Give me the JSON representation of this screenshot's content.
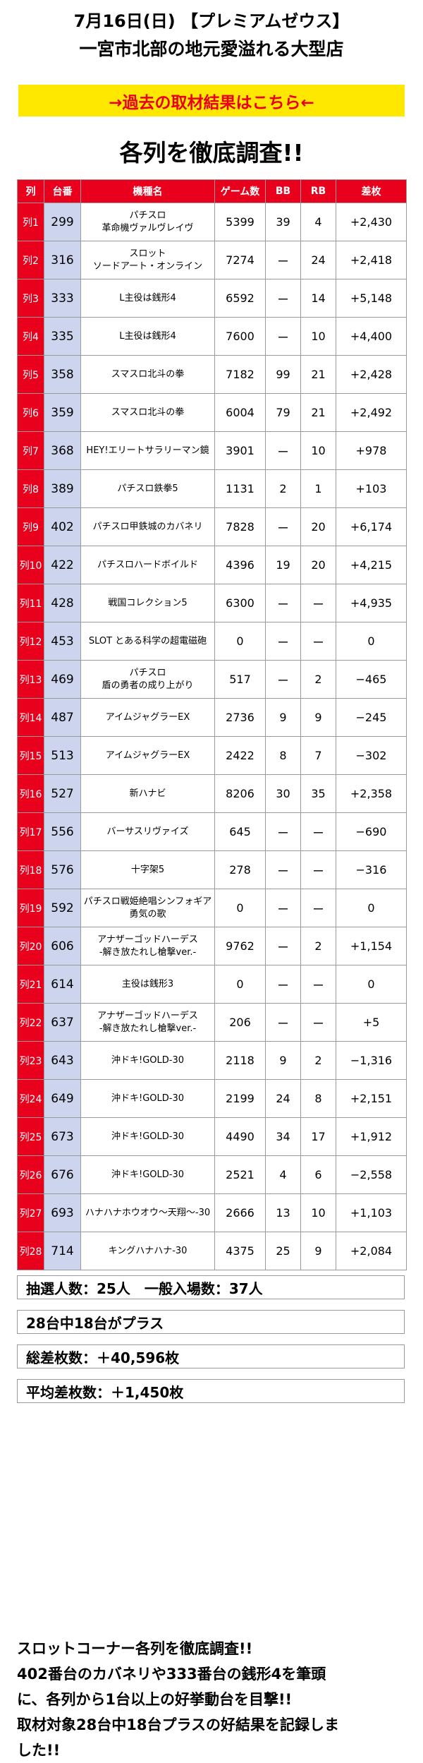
{
  "header": {
    "line1": "7月16日(日) 【プレミアムゼウス】",
    "line2": "一宮市北部の地元愛溢れる大型店"
  },
  "link_banner": "→過去の取材結果はこちら←",
  "section_title": "各列を徹底調査!!",
  "table": {
    "headers": [
      "列",
      "台番",
      "機種名",
      "ゲーム数",
      "BB",
      "RB",
      "差枚"
    ],
    "rows": [
      {
        "col": "列1",
        "no": "299",
        "name": "パチスロ\n革命機ヴァルヴレイヴ",
        "games": "5399",
        "bb": "39",
        "rb": "4",
        "diff": "+2,430"
      },
      {
        "col": "列2",
        "no": "316",
        "name": "スロット\nソードアート・オンライン",
        "games": "7274",
        "bb": "ー",
        "rb": "24",
        "diff": "+2,418"
      },
      {
        "col": "列3",
        "no": "333",
        "name": "L主役は銭形4",
        "games": "6592",
        "bb": "ー",
        "rb": "14",
        "diff": "+5,148"
      },
      {
        "col": "列4",
        "no": "335",
        "name": "L主役は銭形4",
        "games": "7600",
        "bb": "ー",
        "rb": "10",
        "diff": "+4,400"
      },
      {
        "col": "列5",
        "no": "358",
        "name": "スマスロ北斗の拳",
        "games": "7182",
        "bb": "99",
        "rb": "21",
        "diff": "+2,428"
      },
      {
        "col": "列6",
        "no": "359",
        "name": "スマスロ北斗の拳",
        "games": "6004",
        "bb": "79",
        "rb": "21",
        "diff": "+2,492"
      },
      {
        "col": "列7",
        "no": "368",
        "name": "HEY!エリートサラリーマン鏡",
        "games": "3901",
        "bb": "ー",
        "rb": "10",
        "diff": "+978"
      },
      {
        "col": "列8",
        "no": "389",
        "name": "パチスロ鉄拳5",
        "games": "1131",
        "bb": "2",
        "rb": "1",
        "diff": "+103"
      },
      {
        "col": "列9",
        "no": "402",
        "name": "パチスロ甲鉄城のカバネリ",
        "games": "7828",
        "bb": "ー",
        "rb": "20",
        "diff": "+6,174"
      },
      {
        "col": "列10",
        "no": "422",
        "name": "パチスロハードボイルド",
        "games": "4396",
        "bb": "19",
        "rb": "20",
        "diff": "+4,215"
      },
      {
        "col": "列11",
        "no": "428",
        "name": "戦国コレクション5",
        "games": "6300",
        "bb": "ー",
        "rb": "ー",
        "diff": "+4,935"
      },
      {
        "col": "列12",
        "no": "453",
        "name": "SLOT とある科学の超電磁砲",
        "games": "0",
        "bb": "ー",
        "rb": "ー",
        "diff": "0"
      },
      {
        "col": "列13",
        "no": "469",
        "name": "パチスロ\n盾の勇者の成り上がり",
        "games": "517",
        "bb": "ー",
        "rb": "2",
        "diff": "−465"
      },
      {
        "col": "列14",
        "no": "487",
        "name": "アイムジャグラーEX",
        "games": "2736",
        "bb": "9",
        "rb": "9",
        "diff": "−245"
      },
      {
        "col": "列15",
        "no": "513",
        "name": "アイムジャグラーEX",
        "games": "2422",
        "bb": "8",
        "rb": "7",
        "diff": "−302"
      },
      {
        "col": "列16",
        "no": "527",
        "name": "新ハナビ",
        "games": "8206",
        "bb": "30",
        "rb": "35",
        "diff": "+2,358"
      },
      {
        "col": "列17",
        "no": "556",
        "name": "バーサスリヴァイズ",
        "games": "645",
        "bb": "ー",
        "rb": "ー",
        "diff": "−690"
      },
      {
        "col": "列18",
        "no": "576",
        "name": "十字架5",
        "games": "278",
        "bb": "ー",
        "rb": "ー",
        "diff": "−316"
      },
      {
        "col": "列19",
        "no": "592",
        "name": "パチスロ戦姫絶唱シンフォギア\n勇気の歌",
        "games": "0",
        "bb": "ー",
        "rb": "ー",
        "diff": "0"
      },
      {
        "col": "列20",
        "no": "606",
        "name": "アナザーゴッドハーデス\n-解き放たれし槍撃ver.-",
        "games": "9762",
        "bb": "ー",
        "rb": "2",
        "diff": "+1,154"
      },
      {
        "col": "列21",
        "no": "614",
        "name": "主役は銭形3",
        "games": "0",
        "bb": "ー",
        "rb": "ー",
        "diff": "0"
      },
      {
        "col": "列22",
        "no": "637",
        "name": "アナザーゴッドハーデス\n-解き放たれし槍撃ver.-",
        "games": "206",
        "bb": "ー",
        "rb": "ー",
        "diff": "+5"
      },
      {
        "col": "列23",
        "no": "643",
        "name": "沖ドキ!GOLD-30",
        "games": "2118",
        "bb": "9",
        "rb": "2",
        "diff": "−1,316"
      },
      {
        "col": "列24",
        "no": "649",
        "name": "沖ドキ!GOLD-30",
        "games": "2199",
        "bb": "24",
        "rb": "8",
        "diff": "+2,151"
      },
      {
        "col": "列25",
        "no": "673",
        "name": "沖ドキ!GOLD-30",
        "games": "4490",
        "bb": "34",
        "rb": "17",
        "diff": "+1,912"
      },
      {
        "col": "列26",
        "no": "676",
        "name": "沖ドキ!GOLD-30",
        "games": "2521",
        "bb": "4",
        "rb": "6",
        "diff": "−2,558"
      },
      {
        "col": "列27",
        "no": "693",
        "name": "ハナハナホウオウ〜天翔〜-30",
        "games": "2666",
        "bb": "13",
        "rb": "10",
        "diff": "+1,103"
      },
      {
        "col": "列28",
        "no": "714",
        "name": "キングハナハナ-30",
        "games": "4375",
        "bb": "25",
        "rb": "9",
        "diff": "+2,084"
      }
    ]
  },
  "info": {
    "lottery": "抽選人数：25人　一般入場数：37人",
    "plus_count": "28台中18台がプラス",
    "total_diff": "総差枚数：＋40,596枚",
    "avg_diff": "平均差枚数：＋1,450枚"
  },
  "summary": "スロットコーナー各列を徹底調査!!\n402番台のカバネリや333番台の銭形4を筆頭\nに、各列から1台以上の好挙動台を目撃!!\n取材対象28台中18台プラスの好結果を記録しま\nした!!",
  "colors": {
    "accent_red": "#e8001c",
    "banner_yellow": "#ffe800",
    "machine_no_bg": "#ccd4ee"
  }
}
